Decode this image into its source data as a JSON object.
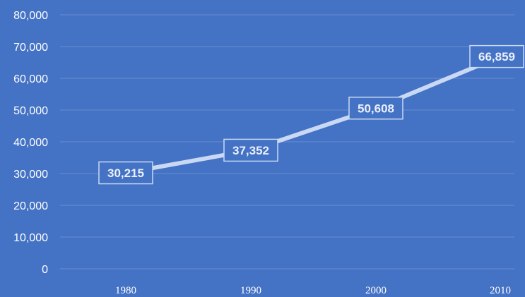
{
  "chart_data": {
    "type": "line",
    "title": "",
    "xlabel": "",
    "ylabel": "",
    "categories": [
      "1980",
      "1990",
      "2000",
      "2010"
    ],
    "series": [
      {
        "values": [
          30215,
          37352,
          50608,
          66859
        ]
      }
    ],
    "data_labels": [
      "30,215",
      "37,352",
      "50,608",
      "66,859"
    ],
    "ylim": [
      0,
      80000
    ],
    "y_ticks": [
      0,
      10000,
      20000,
      30000,
      40000,
      50000,
      60000,
      70000,
      80000
    ],
    "y_tick_labels": [
      "0",
      "10,000",
      "20,000",
      "30,000",
      "40,000",
      "50,000",
      "60,000",
      "70,000",
      "80,000"
    ],
    "grid": true,
    "legend": "none",
    "colors": {
      "background": "#4472c4",
      "line": "#c9d9f3",
      "grid": "#6a8ed2",
      "text": "#ffffff"
    }
  }
}
